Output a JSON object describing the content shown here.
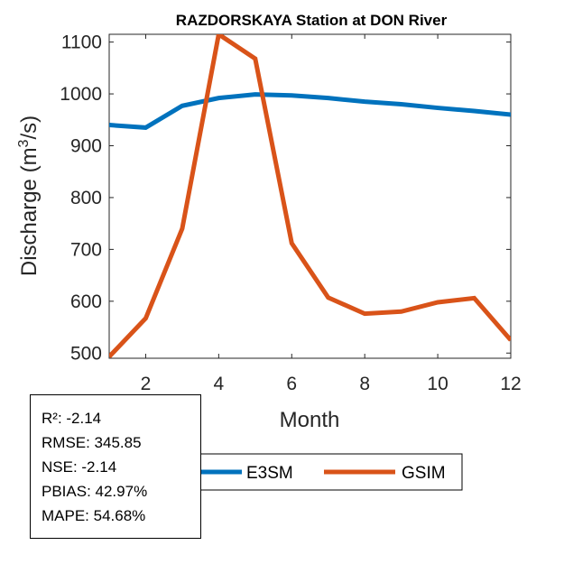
{
  "chart_data": {
    "type": "line",
    "title": "RAZDORSKAYA  Station at  DON  River",
    "xlabel": "Month",
    "ylabel": "Discharge (m³/s)",
    "ylabel_parts": {
      "pre": "Discharge (m",
      "sup": "3",
      "post": "/s)"
    },
    "xlim": [
      1,
      12
    ],
    "ylim": [
      490,
      1115
    ],
    "xticks": [
      2,
      4,
      6,
      8,
      10,
      12
    ],
    "yticks": [
      500,
      600,
      700,
      800,
      900,
      1000,
      1100
    ],
    "x": [
      1,
      2,
      3,
      4,
      5,
      6,
      7,
      8,
      9,
      10,
      11,
      12
    ],
    "series": [
      {
        "name": "E3SM",
        "color": "#0072BD",
        "values": [
          940,
          935,
          977,
          992,
          999,
          997,
          992,
          985,
          980,
          973,
          967,
          960
        ]
      },
      {
        "name": "GSIM",
        "color": "#D95319",
        "values": [
          493,
          567,
          740,
          1115,
          1068,
          712,
          607,
          576,
          580,
          598,
          606,
          525
        ]
      }
    ],
    "legend_placement": "bottom-center, outside"
  },
  "stats": {
    "r2": "R²: -2.14",
    "rmse": "RMSE: 345.85",
    "nse": "NSE: -2.14",
    "pbias": "PBIAS: 42.97%",
    "mape": "MAPE: 54.68%"
  }
}
